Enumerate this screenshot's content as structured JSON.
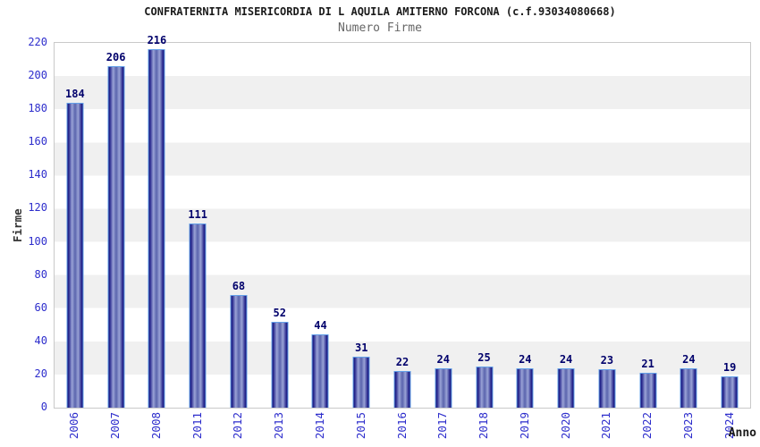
{
  "chart_data": {
    "type": "bar",
    "title": "CONFRATERNITA MISERICORDIA DI L AQUILA AMITERNO FORCONA (c.f.93034080668)",
    "subtitle": "Numero Firme",
    "categories": [
      "2006",
      "2007",
      "2008",
      "2011",
      "2012",
      "2013",
      "2014",
      "2015",
      "2016",
      "2017",
      "2018",
      "2019",
      "2020",
      "2021",
      "2022",
      "2023",
      "2024"
    ],
    "values": [
      184,
      206,
      216,
      111,
      68,
      52,
      44,
      31,
      22,
      24,
      25,
      24,
      24,
      23,
      21,
      24,
      19
    ],
    "xlabel": "Anno",
    "ylabel": "Firme",
    "ylim": [
      0,
      220
    ],
    "ytick_step": 20,
    "grid": "alternating-horizontal-bands",
    "legend": "none",
    "colors": {
      "bar_edge": "#14147a",
      "bar_light": "#9aa3d6",
      "bar_center": "#5a64ad",
      "bar_border": "#63a0e8",
      "value_label": "#00006b",
      "tick_label": "#2d2dcc",
      "title": "#1a1a1a",
      "subtitle": "#666666",
      "band_gray": "#f0f0f0",
      "plot_border": "#c9c9c9"
    }
  }
}
